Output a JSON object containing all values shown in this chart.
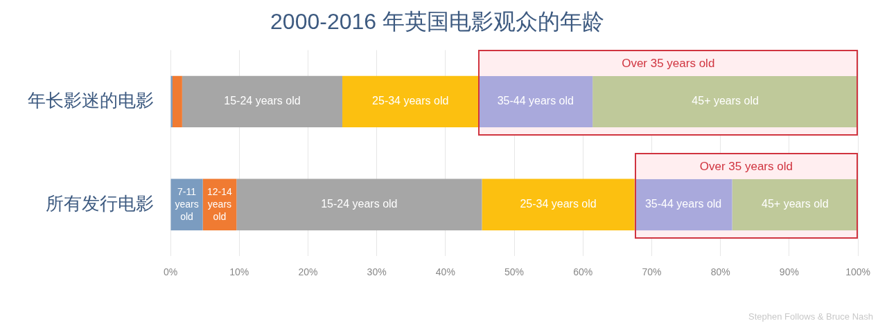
{
  "chart_data": {
    "type": "bar",
    "orientation": "horizontal",
    "stacked": true,
    "title": "2000-2016 年英国电影观众的年龄",
    "categories": [
      "年长影迷的电影",
      "所有发行电影"
    ],
    "series": [
      {
        "name": "7-11 years old",
        "color": "#7b9cc0",
        "values": [
          0.3,
          4.7
        ]
      },
      {
        "name": "12-14 years old",
        "color": "#f07b32",
        "values": [
          1.4,
          4.9
        ]
      },
      {
        "name": "15-24 years old",
        "color": "#a6a6a6",
        "values": [
          23.3,
          35.7
        ]
      },
      {
        "name": "25-34 years old",
        "color": "#fcc010",
        "values": [
          19.8,
          22.2
        ]
      },
      {
        "name": "35-44 years old",
        "color": "#a9a9dc",
        "values": [
          16.6,
          14.2
        ]
      },
      {
        "name": "45+ years old",
        "color": "#bfc99a",
        "values": [
          38.6,
          18.3
        ]
      }
    ],
    "xlim": [
      0,
      100
    ],
    "xticks": [
      {
        "value": 0,
        "label": "0%"
      },
      {
        "value": 10,
        "label": "10%"
      },
      {
        "value": 20,
        "label": "20%"
      },
      {
        "value": 30,
        "label": "30%"
      },
      {
        "value": 40,
        "label": "40%"
      },
      {
        "value": 50,
        "label": "50%"
      },
      {
        "value": 60,
        "label": "60%"
      },
      {
        "value": 70,
        "label": "70%"
      },
      {
        "value": 80,
        "label": "80%"
      },
      {
        "value": 90,
        "label": "90%"
      },
      {
        "value": 100,
        "label": "100%"
      }
    ],
    "grid": "x",
    "legend": false,
    "annotations": [
      "Over 35 years old",
      "Over 35 years old",
      "Stephen Follows & Bruce Nash"
    ]
  }
}
